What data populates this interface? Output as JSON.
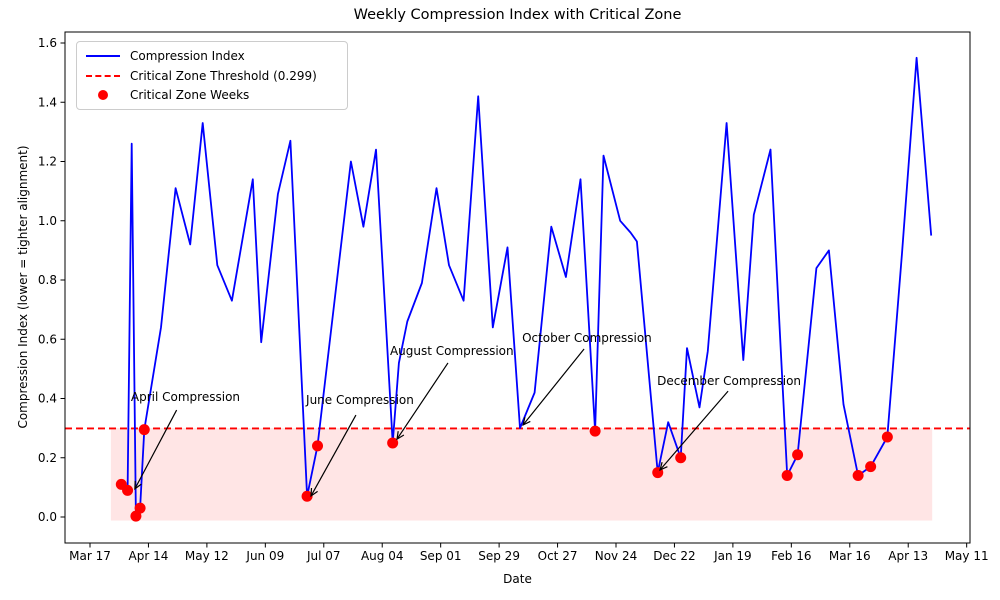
{
  "figure": {
    "title": "Weekly Compression Index with Critical Zone",
    "xlabel": "Date",
    "ylabel": "Compression Index (lower = tighter alignment)"
  },
  "legend": {
    "items": [
      {
        "label": "Compression Index",
        "type": "line",
        "color": "#0000ff"
      },
      {
        "label": "Critical Zone Threshold (0.299)",
        "type": "dashed",
        "color": "#ff0000"
      },
      {
        "label": "Critical Zone Weeks",
        "type": "dot",
        "color": "#ff0000"
      }
    ]
  },
  "chart_data": {
    "type": "line",
    "title": "Weekly Compression Index with Critical Zone",
    "xlabel": "Date",
    "ylabel": "Compression Index (lower = tighter alignment)",
    "x_unit": "days since first x tick (Mar 17)",
    "x_ticks": [
      {
        "day": 0,
        "label": "Mar 17"
      },
      {
        "day": 28,
        "label": "Apr 14"
      },
      {
        "day": 56,
        "label": "May 12"
      },
      {
        "day": 84,
        "label": "Jun 09"
      },
      {
        "day": 112,
        "label": "Jul 07"
      },
      {
        "day": 140,
        "label": "Aug 04"
      },
      {
        "day": 168,
        "label": "Sep 01"
      },
      {
        "day": 196,
        "label": "Sep 29"
      },
      {
        "day": 224,
        "label": "Oct 27"
      },
      {
        "day": 252,
        "label": "Nov 24"
      },
      {
        "day": 280,
        "label": "Dec 22"
      },
      {
        "day": 308,
        "label": "Jan 19"
      },
      {
        "day": 336,
        "label": "Feb 16"
      },
      {
        "day": 364,
        "label": "Mar 16"
      },
      {
        "day": 392,
        "label": "Apr 13"
      },
      {
        "day": 420,
        "label": "May 11"
      }
    ],
    "y_ticks": [
      0.0,
      0.2,
      0.4,
      0.6,
      0.8,
      1.0,
      1.2,
      1.4,
      1.6
    ],
    "ylim": [
      -0.088,
      1.637
    ],
    "xlim_days": [
      -12,
      421.5
    ],
    "grid": false,
    "legend_position": "upper left",
    "threshold": 0.299,
    "threshold_color": "#ff0000",
    "line_color": "#0000ff",
    "critical_color": "#ff0000",
    "critical_zone": {
      "day_start": 10,
      "day_end": 403.5,
      "value_top": 0.3,
      "value_bottom": -0.012,
      "fill": "rgba(255,0,0,0.10)"
    },
    "series": [
      {
        "name": "Compression Index",
        "points": [
          [
            15,
            0.11
          ],
          [
            18,
            0.09
          ],
          [
            20,
            1.26
          ],
          [
            22,
            0.003
          ],
          [
            24,
            0.03
          ],
          [
            26,
            0.295
          ],
          [
            34,
            0.64
          ],
          [
            41,
            1.11
          ],
          [
            48,
            0.92
          ],
          [
            54,
            1.33
          ],
          [
            61,
            0.85
          ],
          [
            68,
            0.73
          ],
          [
            78,
            1.14
          ],
          [
            82,
            0.59
          ],
          [
            90,
            1.09
          ],
          [
            96,
            1.27
          ],
          [
            104,
            0.07
          ],
          [
            109,
            0.24
          ],
          [
            117,
            0.72
          ],
          [
            125,
            1.2
          ],
          [
            131,
            0.98
          ],
          [
            137,
            1.24
          ],
          [
            145,
            0.25
          ],
          [
            148,
            0.52
          ],
          [
            152,
            0.66
          ],
          [
            159,
            0.79
          ],
          [
            166,
            1.11
          ],
          [
            172,
            0.85
          ],
          [
            179,
            0.73
          ],
          [
            186,
            1.42
          ],
          [
            193,
            0.64
          ],
          [
            200,
            0.91
          ],
          [
            206,
            0.3
          ],
          [
            213,
            0.42
          ],
          [
            221,
            0.98
          ],
          [
            228,
            0.81
          ],
          [
            235,
            1.14
          ],
          [
            242,
            0.29
          ],
          [
            246,
            1.22
          ],
          [
            254,
            1.0
          ],
          [
            259,
            0.96
          ],
          [
            262,
            0.93
          ],
          [
            272,
            0.15
          ],
          [
            277,
            0.32
          ],
          [
            283,
            0.2
          ],
          [
            286,
            0.57
          ],
          [
            292,
            0.37
          ],
          [
            296,
            0.56
          ],
          [
            305,
            1.33
          ],
          [
            313,
            0.53
          ],
          [
            318,
            1.02
          ],
          [
            326,
            1.24
          ],
          [
            334,
            0.14
          ],
          [
            339,
            0.21
          ],
          [
            348,
            0.84
          ],
          [
            354,
            0.9
          ],
          [
            361,
            0.38
          ],
          [
            368,
            0.14
          ],
          [
            374,
            0.17
          ],
          [
            382,
            0.27
          ],
          [
            389,
            0.89
          ],
          [
            396,
            1.55
          ],
          [
            403,
            0.95
          ]
        ]
      }
    ],
    "critical_weeks": [
      [
        15,
        0.11
      ],
      [
        18,
        0.09
      ],
      [
        22,
        0.003
      ],
      [
        24,
        0.03
      ],
      [
        26,
        0.295
      ],
      [
        104,
        0.07
      ],
      [
        109,
        0.24
      ],
      [
        145,
        0.25
      ],
      [
        242,
        0.29
      ],
      [
        272,
        0.15
      ],
      [
        283,
        0.2
      ],
      [
        334,
        0.14
      ],
      [
        339,
        0.21
      ],
      [
        368,
        0.14
      ],
      [
        374,
        0.17
      ],
      [
        382,
        0.27
      ]
    ],
    "annotations": [
      {
        "label": "April Compression",
        "text": [
          19.6,
          0.425
        ],
        "arrow_start": [
          41.5,
          0.361
        ],
        "arrow_tip": [
          21.5,
          0.095
        ]
      },
      {
        "label": "June Compression",
        "text": [
          103.5,
          0.415
        ],
        "arrow_start": [
          127.4,
          0.344
        ],
        "arrow_tip": [
          105.9,
          0.071
        ]
      },
      {
        "label": "August Compression",
        "text": [
          143.7,
          0.581
        ],
        "arrow_start": [
          171.5,
          0.52
        ],
        "arrow_tip": [
          147.1,
          0.263
        ]
      },
      {
        "label": "October Compression",
        "text": [
          207.0,
          0.625
        ],
        "arrow_start": [
          236.7,
          0.567
        ],
        "arrow_tip": [
          207.5,
          0.311
        ]
      },
      {
        "label": "December Compression",
        "text": [
          271.7,
          0.479
        ],
        "arrow_start": [
          305.7,
          0.425
        ],
        "arrow_tip": [
          273.1,
          0.159
        ]
      }
    ]
  }
}
